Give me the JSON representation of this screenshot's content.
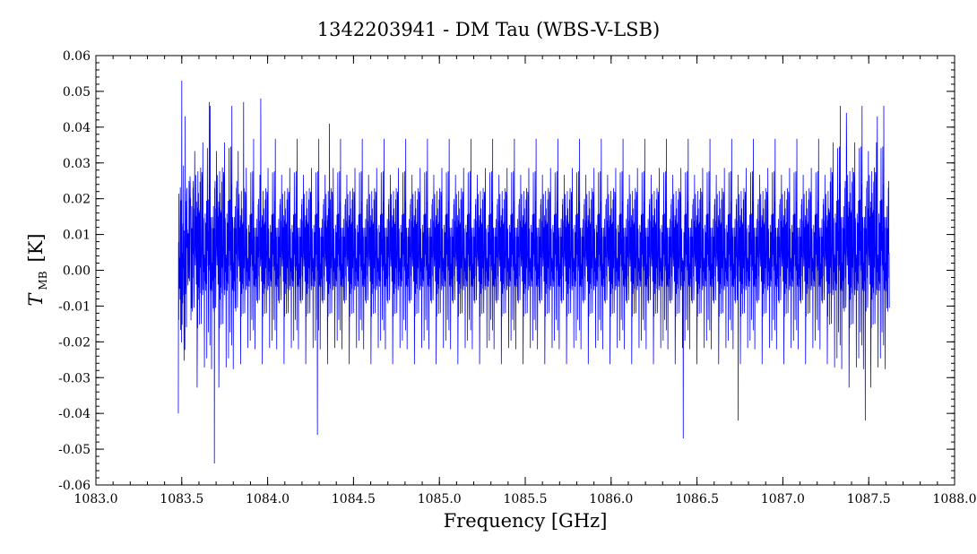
{
  "chart_data": {
    "type": "line",
    "title": "1342203941 - DM Tau (WBS-V-LSB)",
    "xlabel": "Frequency [GHz]",
    "ylabel_symbol": "T",
    "ylabel_subscript": "MB",
    "ylabel_unit": "[K]",
    "xlim": [
      1083.0,
      1088.0
    ],
    "ylim": [
      -0.06,
      0.06
    ],
    "x_ticks": [
      "1083.0",
      "1083.5",
      "1084.0",
      "1084.5",
      "1085.0",
      "1085.5",
      "1086.0",
      "1086.5",
      "1087.0",
      "1087.5",
      "1088.0"
    ],
    "y_ticks": [
      "0.06",
      "0.05",
      "0.04",
      "0.03",
      "0.02",
      "0.01",
      "0.00",
      "-0.01",
      "-0.02",
      "-0.03",
      "-0.04",
      "-0.05",
      "-0.06"
    ],
    "grid": false,
    "series": [
      {
        "color": "#0000ff",
        "x_start": 1083.48,
        "x_end": 1087.62,
        "mean": 0.0,
        "rms": 0.012,
        "min": -0.054,
        "max": 0.053,
        "peaks": [
          {
            "x": 1083.5,
            "y": 0.053
          },
          {
            "x": 1083.52,
            "y": 0.043
          },
          {
            "x": 1083.66,
            "y": 0.047
          },
          {
            "x": 1083.86,
            "y": 0.047
          },
          {
            "x": 1083.96,
            "y": 0.048
          },
          {
            "x": 1084.36,
            "y": 0.041
          },
          {
            "x": 1087.37,
            "y": 0.044
          },
          {
            "x": 1087.55,
            "y": 0.043
          },
          {
            "x": 1083.69,
            "y": -0.054
          },
          {
            "x": 1084.29,
            "y": -0.046
          },
          {
            "x": 1086.42,
            "y": -0.047
          },
          {
            "x": 1083.48,
            "y": -0.04
          },
          {
            "x": 1086.74,
            "y": -0.042
          },
          {
            "x": 1087.48,
            "y": -0.042
          }
        ]
      }
    ]
  }
}
